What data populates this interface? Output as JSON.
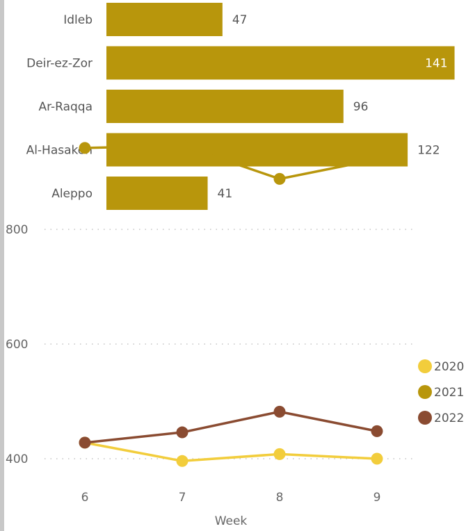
{
  "chart_data": [
    {
      "type": "bar",
      "orientation": "horizontal",
      "categories": [
        "Idleb",
        "Deir-ez-Zor",
        "Ar-Raqqa",
        "Al-Hasakeh",
        "Aleppo"
      ],
      "values": [
        47,
        141,
        96,
        122,
        41
      ],
      "color": "#b8960c",
      "data_labels": [
        "47",
        "141",
        "96",
        "122",
        "41"
      ]
    },
    {
      "type": "line",
      "x": [
        6,
        7,
        8,
        9
      ],
      "x_tick_labels": [
        "6",
        "7",
        "8",
        "9"
      ],
      "xlabel": "Week",
      "ylim": [
        380,
        980
      ],
      "y_ticks": [
        400,
        600,
        800
      ],
      "y_tick_labels": [
        "400",
        "600",
        "800"
      ],
      "grid": "dotted horizontal",
      "legend_placement": "right",
      "series": [
        {
          "name": "2020",
          "color": "#f2cd3c",
          "values": [
            428,
            396,
            408,
            400
          ]
        },
        {
          "name": "2021",
          "color": "#b8960c",
          "values": [
            942,
            946,
            888,
            922
          ]
        },
        {
          "name": "2022",
          "color": "#8a4b31",
          "values": [
            428,
            446,
            482,
            448
          ]
        }
      ]
    }
  ]
}
